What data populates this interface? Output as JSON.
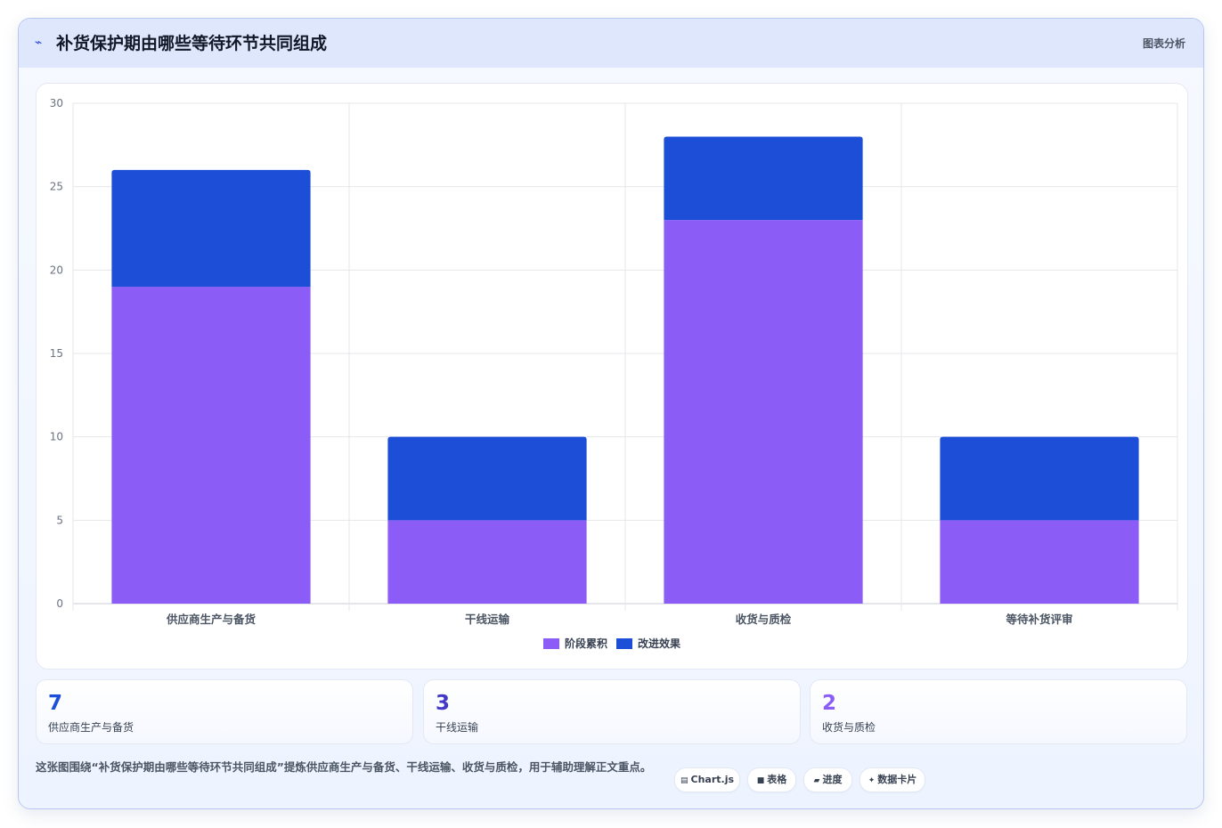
{
  "header": {
    "icon": "sparkline-icon",
    "title": "补货保护期由哪些等待环节共同组成",
    "tag": "图表分析"
  },
  "colors": {
    "accent": "#1d4ed8",
    "purple": "#8b5cf6",
    "indigo": "#4338ca"
  },
  "chart_data": {
    "type": "bar",
    "stacked": true,
    "categories": [
      "供应商生产与备货",
      "干线运输",
      "收货与质检",
      "等待补货评审"
    ],
    "series": [
      {
        "name": "阶段累积",
        "values": [
          19,
          5,
          23,
          5
        ],
        "color": "#8b5cf6"
      },
      {
        "name": "改进效果",
        "values": [
          7,
          5,
          5,
          5
        ],
        "color": "#1d4ed8"
      }
    ],
    "ylim": [
      0,
      30
    ],
    "yticks": [
      0,
      5,
      10,
      15,
      20,
      25,
      30
    ],
    "grid": true,
    "legend": "bottom"
  },
  "stats": [
    {
      "value": "7",
      "label": "供应商生产与备货",
      "color": "#1d4ed8"
    },
    {
      "value": "3",
      "label": "干线运输",
      "color": "#4338ca"
    },
    {
      "value": "2",
      "label": "收货与质检",
      "color": "#8b5cf6"
    }
  ],
  "footnote": "这张图围绕“补货保护期由哪些等待环节共同组成”提炼供应商生产与备货、干线运输、收货与质检，用于辅助理解正文重点。",
  "chips": [
    {
      "icon": "chart-icon",
      "glyph": "▤",
      "label": "Chart.js"
    },
    {
      "icon": "table-icon",
      "glyph": "■",
      "label": "表格"
    },
    {
      "icon": "progress-icon",
      "glyph": "▰",
      "label": "进度"
    },
    {
      "icon": "data-card-icon",
      "glyph": "✦",
      "label": "数据卡片"
    }
  ]
}
